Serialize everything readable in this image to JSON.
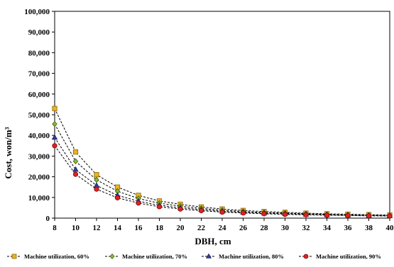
{
  "chart_data": {
    "type": "line",
    "xlabel": "DBH, cm",
    "ylabel": "Cost, won/m³",
    "xlim": [
      8,
      40
    ],
    "ylim": [
      0,
      100000
    ],
    "x_ticks": [
      "8",
      "10",
      "12",
      "14",
      "16",
      "18",
      "20",
      "22",
      "24",
      "26",
      "28",
      "30",
      "32",
      "34",
      "36",
      "38",
      "40"
    ],
    "y_ticks": [
      "0",
      "10,000",
      "20,000",
      "30,000",
      "40,000",
      "50,000",
      "60,000",
      "70,000",
      "80,000",
      "90,000",
      "100,000"
    ],
    "grid": false,
    "legend_position": "bottom",
    "x": [
      8,
      10,
      12,
      14,
      16,
      18,
      20,
      22,
      24,
      26,
      28,
      30,
      32,
      34,
      36,
      38,
      40
    ],
    "series": [
      {
        "name": "Machine utilization, 60%",
        "marker": "square",
        "color": "#E6B422",
        "edge": "#8B6508",
        "values": [
          53000,
          32000,
          21000,
          15000,
          11000,
          8300,
          6700,
          5400,
          4400,
          3700,
          3200,
          2800,
          2400,
          2100,
          1900,
          1700,
          1500
        ]
      },
      {
        "name": "Machine utilization, 70%",
        "marker": "diamond",
        "color": "#8DB83A",
        "edge": "#3E5F10",
        "values": [
          45500,
          27500,
          18500,
          13000,
          9500,
          7200,
          5800,
          4700,
          3800,
          3200,
          2700,
          2400,
          2100,
          1800,
          1600,
          1400,
          1300
        ]
      },
      {
        "name": "Machine utilization, 80%",
        "marker": "triangle",
        "color": "#2F3E9E",
        "edge": "#1A2266",
        "values": [
          39000,
          23500,
          15800,
          11000,
          8200,
          6200,
          5000,
          4100,
          3300,
          2800,
          2400,
          2100,
          1800,
          1600,
          1400,
          1250,
          1100
        ]
      },
      {
        "name": "Machine utilization, 90%",
        "marker": "circle",
        "color": "#E32020",
        "edge": "#7A0A0A",
        "values": [
          35000,
          21200,
          14000,
          9800,
          7300,
          5500,
          4400,
          3600,
          2900,
          2500,
          2100,
          1800,
          1600,
          1400,
          1250,
          1100,
          1000
        ]
      }
    ]
  }
}
